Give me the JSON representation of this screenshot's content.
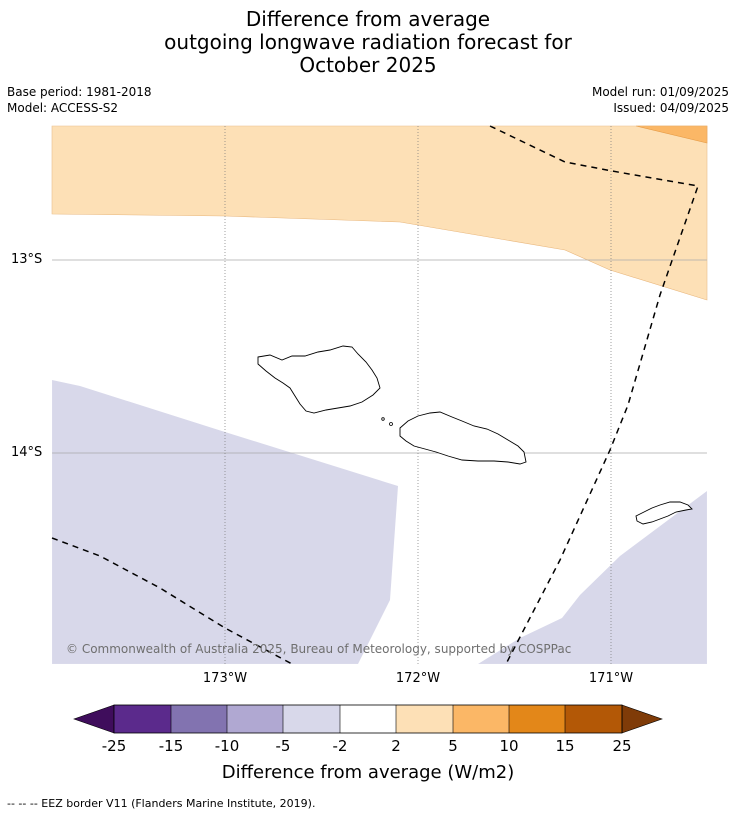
{
  "title": {
    "line1": "Difference from average",
    "line2": "outgoing longwave radiation forecast for",
    "line3": "October 2025"
  },
  "meta": {
    "base_period": "Base period: 1981-2018",
    "model": "Model: ACCESS-S2",
    "model_run": "Model run: 01/09/2025",
    "issued": "Issued: 04/09/2025"
  },
  "map": {
    "latitude_labels": [
      "13°S",
      "14°S"
    ],
    "longitude_labels": [
      "173°W",
      "172°W",
      "171°W"
    ],
    "copyright": "© Commonwealth of Australia 2025, Bureau of Meteorology, supported by COSPPac",
    "colors": {
      "anomaly_2_5": "#fde0b6",
      "anomaly_5_10": "#fbb766",
      "anomaly_neg5_neg2": "#d8d8ea",
      "eez_border": "#000000"
    }
  },
  "colorbar": {
    "title": "Difference from average (W/m2)",
    "ticks": [
      "-25",
      "-15",
      "-10",
      "-5",
      "-2",
      "2",
      "5",
      "10",
      "15",
      "25"
    ],
    "colors": [
      "#3f0d5c",
      "#5b2a8c",
      "#8273b0",
      "#b0a8d2",
      "#d8d8ea",
      "#ffffff",
      "#fde0b6",
      "#fbb766",
      "#e38719",
      "#b35806",
      "#7f3b08"
    ]
  },
  "footnote": "--  --  -- EEZ border V11 (Flanders Marine Institute, 2019)."
}
